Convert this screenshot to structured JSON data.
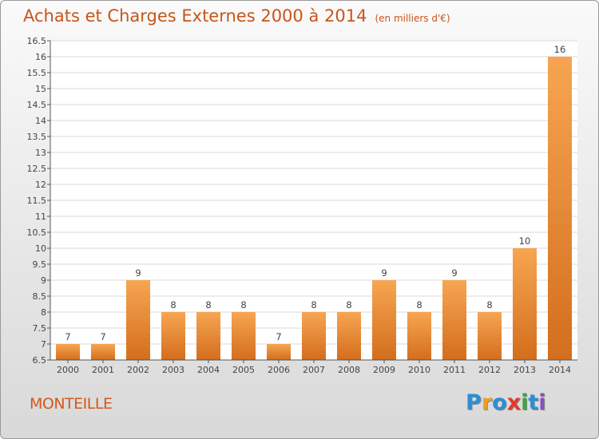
{
  "header": {
    "title": "Achats et Charges Externes 2000 à 2014",
    "unit": "(en milliers d'€)"
  },
  "footer": {
    "commune": "MONTEILLE",
    "logo_letters": [
      "P",
      "r",
      "o",
      "x",
      "i",
      "t",
      "i"
    ],
    "logo_colors": [
      "#2b8fd6",
      "#f0a020",
      "#2b8fd6",
      "#e23a2a",
      "#3aa83a",
      "#2b8fd6",
      "#8a4fc0"
    ]
  },
  "chart_data": {
    "type": "bar",
    "title": "Achats et Charges Externes 2000 à 2014",
    "categories": [
      "2000",
      "2001",
      "2002",
      "2003",
      "2004",
      "2005",
      "2006",
      "2007",
      "2008",
      "2009",
      "2010",
      "2011",
      "2012",
      "2013",
      "2014"
    ],
    "values": [
      7,
      7,
      9,
      8,
      8,
      8,
      7,
      8,
      8,
      9,
      8,
      9,
      8,
      10,
      16
    ],
    "data_labels": [
      "7",
      "7",
      "9",
      "8",
      "8",
      "8",
      "7",
      "8",
      "8",
      "9",
      "8",
      "9",
      "8",
      "10",
      "16"
    ],
    "ylim": [
      6.5,
      16.5
    ],
    "yticks": [
      6.5,
      7,
      7.5,
      8,
      8.5,
      9,
      9.5,
      10,
      10.5,
      11,
      11.5,
      12,
      12.5,
      13,
      13.5,
      14,
      14.5,
      15,
      15.5,
      16,
      16.5
    ],
    "ytick_labels": [
      "6.5",
      "7",
      "7.5",
      "8",
      "8.5",
      "9",
      "9.5",
      "10",
      "10.5",
      "11",
      "11.5",
      "12",
      "12.5",
      "13",
      "13.5",
      "14",
      "14.5",
      "15",
      "15.5",
      "16",
      "16.5"
    ],
    "grid": true,
    "colors": {
      "bar_light": "#f7a552",
      "bar_dark": "#d36e1d",
      "grid": "#d8d8d8",
      "axis": "#555555"
    }
  }
}
